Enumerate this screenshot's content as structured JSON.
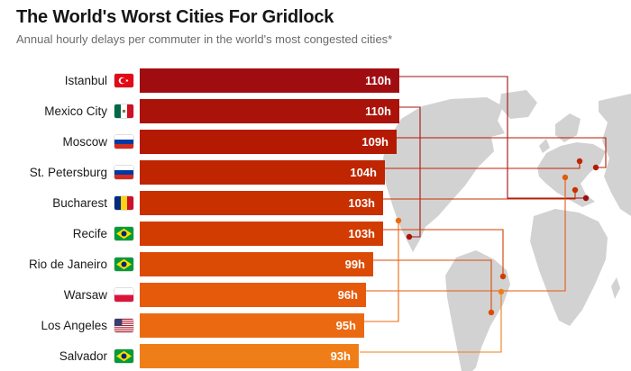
{
  "chart_data": {
    "type": "bar",
    "orientation": "horizontal",
    "title": "The World's Worst Cities For Gridlock",
    "subtitle": "Annual hourly delays per commuter in the world's most congested cities*",
    "unit": "hours of delay per commuter per year",
    "xlim": [
      0,
      110
    ],
    "grid": false,
    "legend": "none",
    "categories": [
      "Istanbul",
      "Mexico City",
      "Moscow",
      "St. Petersburg",
      "Bucharest",
      "Recife",
      "Rio de Janeiro",
      "Warsaw",
      "Los Angeles",
      "Salvador"
    ],
    "values": [
      110,
      110,
      109,
      104,
      103,
      103,
      99,
      96,
      95,
      93
    ],
    "value_labels": [
      "110h",
      "110h",
      "109h",
      "104h",
      "103h",
      "103h",
      "99h",
      "96h",
      "95h",
      "93h"
    ],
    "countries": [
      "turkey",
      "mexico",
      "russia",
      "russia",
      "romania",
      "brazil",
      "brazil",
      "poland",
      "usa",
      "brazil"
    ],
    "bar_colors": [
      "#a00d11",
      "#aa1309",
      "#b41a03",
      "#be2500",
      "#c83000",
      "#d23c00",
      "#dc4b05",
      "#e55a0b",
      "#eb6a11",
      "#f07e18"
    ],
    "map_land_color": "#d2d2d2"
  }
}
